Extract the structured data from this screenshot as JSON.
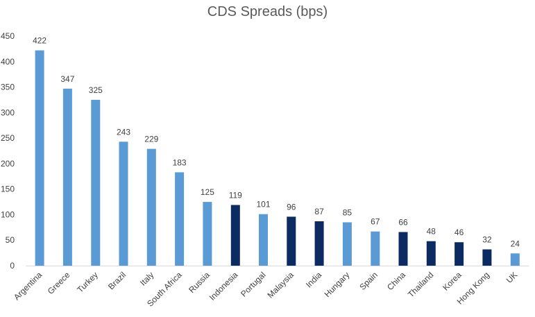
{
  "chart_data": {
    "type": "bar",
    "title": "CDS Spreads (bps)",
    "xlabel": "",
    "ylabel": "",
    "ylim": [
      0,
      450
    ],
    "yticks": [
      0,
      50,
      100,
      150,
      200,
      250,
      300,
      350,
      400,
      450
    ],
    "yticks_labels": [
      "0",
      "50",
      "100",
      "150",
      "200",
      "250",
      "300",
      "350",
      "400",
      "450"
    ],
    "grid": false,
    "legend": "none",
    "colors": {
      "light": "#5b9bd5",
      "dark": "#0c2b63",
      "axis": "#d9d9d9",
      "text": "#404040"
    },
    "categories": [
      "Argentina",
      "Greece",
      "Turkey",
      "Brazil",
      "Italy",
      "South Africa",
      "Russia",
      "Indonesia",
      "Portugal",
      "Malaysia",
      "India",
      "Hungary",
      "Spain",
      "China",
      "Thailand",
      "Korea",
      "Hong Kong",
      "UK"
    ],
    "values": [
      422,
      347,
      325,
      243,
      229,
      183,
      125,
      119,
      101,
      96,
      87,
      85,
      67,
      66,
      48,
      46,
      32,
      24
    ],
    "value_labels": [
      "422",
      "347",
      "325",
      "243",
      "229",
      "183",
      "125",
      "119",
      "101",
      "96",
      "87",
      "85",
      "67",
      "66",
      "48",
      "46",
      "32",
      "24"
    ],
    "bar_shades": [
      "light",
      "light",
      "light",
      "light",
      "light",
      "light",
      "light",
      "dark",
      "light",
      "dark",
      "dark",
      "light",
      "light",
      "dark",
      "dark",
      "dark",
      "dark",
      "light"
    ]
  }
}
